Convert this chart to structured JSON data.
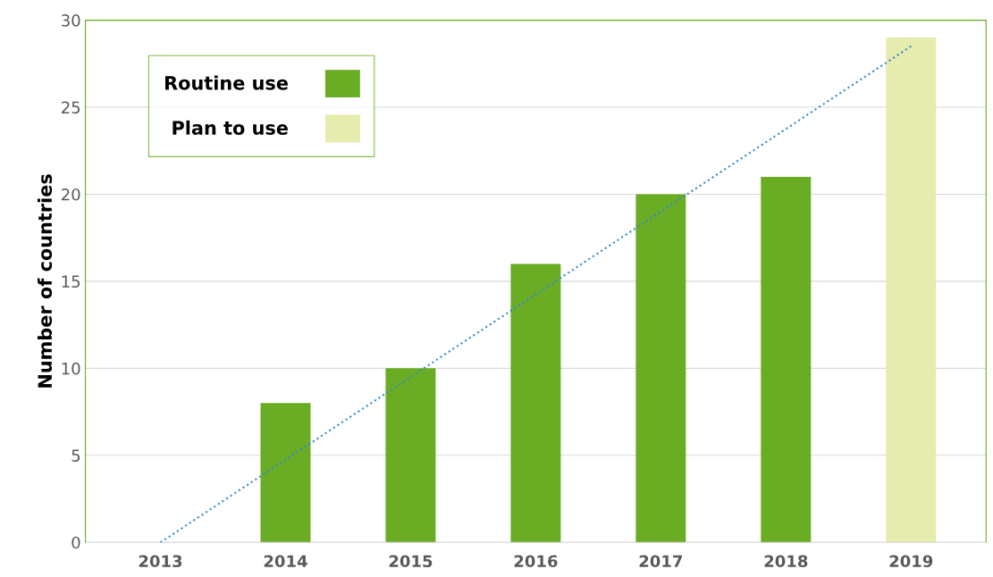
{
  "chart_data": {
    "type": "bar",
    "ylabel": "Number of countries",
    "categories": [
      "2013",
      "2014",
      "2015",
      "2016",
      "2017",
      "2018",
      "2019"
    ],
    "series": [
      {
        "name": "Routine use",
        "color": "#6aac23",
        "values": [
          null,
          8,
          10,
          16,
          20,
          21,
          null
        ]
      },
      {
        "name": "Plan to use",
        "color": "#e6ebae",
        "values": [
          null,
          null,
          null,
          null,
          null,
          null,
          29
        ]
      },
      {
        "type": "line",
        "color": "#2e8bcf",
        "line_style": "dotted",
        "values": [
          0,
          null,
          null,
          null,
          null,
          null,
          28.5
        ]
      }
    ],
    "ylim": [
      0,
      30
    ],
    "yticks": [
      0,
      5,
      10,
      15,
      20,
      25,
      30
    ],
    "grid": "y",
    "legend": "top left"
  }
}
